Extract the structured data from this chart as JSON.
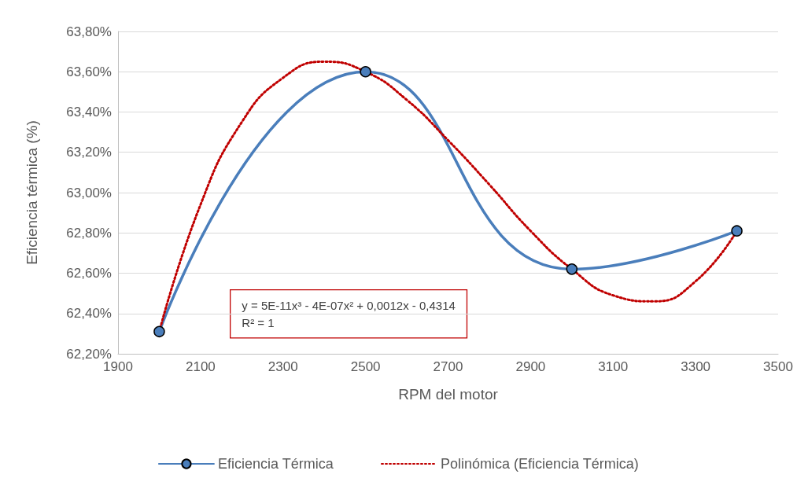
{
  "chart_data": {
    "type": "line",
    "xlabel": "RPM del motor",
    "ylabel": "Eficiencia térmica (%)",
    "series": [
      {
        "name": "Eficiencia Térmica",
        "color": "#4a7ebb",
        "marker": "circle",
        "line_style": "solid",
        "x": [
          2000,
          2500,
          3000,
          3400
        ],
        "values": [
          62.31,
          63.6,
          62.62,
          62.81
        ]
      },
      {
        "name": "Polinómica (Eficiencia Térmica)",
        "color": "#c00000",
        "marker": "none",
        "line_style": "dotted",
        "x": [
          2000,
          2100,
          2200,
          2300,
          2400,
          2500,
          2600,
          2700,
          2800,
          2900,
          3000,
          3100,
          3200,
          3300,
          3400
        ],
        "values": [
          62.31,
          62.94,
          63.35,
          63.57,
          63.65,
          63.6,
          63.46,
          63.26,
          63.04,
          62.81,
          62.62,
          62.49,
          62.46,
          62.56,
          62.81
        ]
      }
    ],
    "xlim": [
      1900,
      3500
    ],
    "xticks": [
      1900,
      2100,
      2300,
      2500,
      2700,
      2900,
      3100,
      3300,
      3500
    ],
    "ylim": [
      62.2,
      63.8
    ],
    "yticks": [
      {
        "value": 62.2,
        "label": "62,20%"
      },
      {
        "value": 62.4,
        "label": "62,40%"
      },
      {
        "value": 62.6,
        "label": "62,60%"
      },
      {
        "value": 62.8,
        "label": "62,80%"
      },
      {
        "value": 63.0,
        "label": "63,00%"
      },
      {
        "value": 63.2,
        "label": "63,20%"
      },
      {
        "value": 63.4,
        "label": "63,40%"
      },
      {
        "value": 63.6,
        "label": "63,60%"
      },
      {
        "value": 63.8,
        "label": "63,80%"
      }
    ],
    "annotations": [
      "y = 5E-11x³ - 4E-07x² + 0,0012x - 0,4314\nR² = 1"
    ],
    "grid": "y",
    "legend": "bottom"
  }
}
